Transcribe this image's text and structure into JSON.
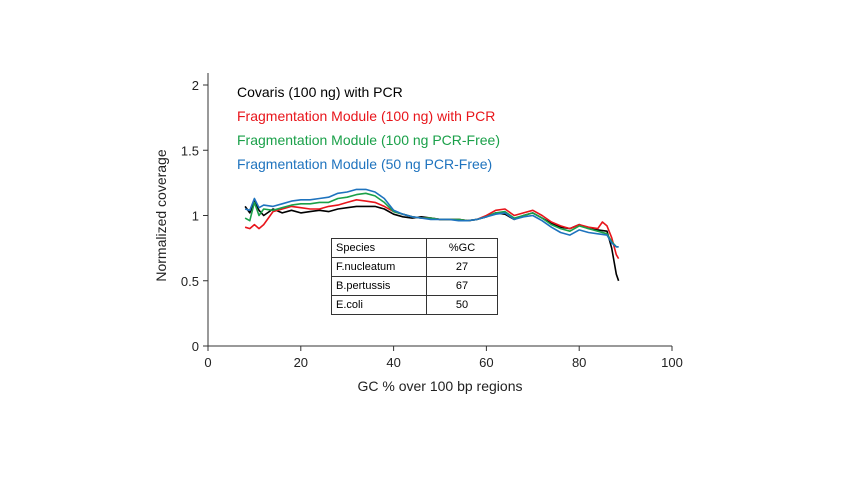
{
  "chart_data": {
    "type": "line",
    "title": "",
    "xlabel": "GC % over 100 bp regions",
    "ylabel": "Normalized coverage",
    "xlim": [
      0,
      100
    ],
    "ylim": [
      0,
      2
    ],
    "xticks": [
      0,
      20,
      40,
      60,
      80,
      100
    ],
    "yticks": [
      0,
      0.5,
      1,
      1.5,
      2
    ],
    "ytick_labels": [
      "0",
      "0.5",
      "1",
      "1.5",
      "2"
    ],
    "grid": false,
    "legend_position": "top-left",
    "series": [
      {
        "name": "Covaris (100 ng) with PCR",
        "color": "#000000",
        "points": [
          [
            8,
            1.07
          ],
          [
            9,
            1.02
          ],
          [
            10,
            1.11
          ],
          [
            11,
            1.04
          ],
          [
            12,
            1.0
          ],
          [
            14,
            1.05
          ],
          [
            16,
            1.02
          ],
          [
            18,
            1.04
          ],
          [
            20,
            1.02
          ],
          [
            22,
            1.03
          ],
          [
            24,
            1.04
          ],
          [
            26,
            1.03
          ],
          [
            28,
            1.05
          ],
          [
            30,
            1.06
          ],
          [
            32,
            1.07
          ],
          [
            34,
            1.07
          ],
          [
            36,
            1.07
          ],
          [
            38,
            1.05
          ],
          [
            40,
            1.01
          ],
          [
            42,
            0.99
          ],
          [
            44,
            0.98
          ],
          [
            46,
            0.99
          ],
          [
            48,
            0.98
          ],
          [
            50,
            0.97
          ],
          [
            52,
            0.97
          ],
          [
            54,
            0.97
          ],
          [
            56,
            0.96
          ],
          [
            58,
            0.97
          ],
          [
            60,
            0.99
          ],
          [
            62,
            1.02
          ],
          [
            64,
            1.01
          ],
          [
            66,
            0.97
          ],
          [
            68,
            1.0
          ],
          [
            70,
            1.02
          ],
          [
            72,
            0.98
          ],
          [
            74,
            0.94
          ],
          [
            76,
            0.91
          ],
          [
            78,
            0.9
          ],
          [
            80,
            0.93
          ],
          [
            82,
            0.9
          ],
          [
            84,
            0.89
          ],
          [
            86,
            0.88
          ],
          [
            87,
            0.75
          ],
          [
            88,
            0.55
          ],
          [
            88.5,
            0.5
          ]
        ]
      },
      {
        "name": "Fragmentation Module (100 ng) with PCR",
        "color": "#e8151b",
        "points": [
          [
            8,
            0.91
          ],
          [
            9,
            0.9
          ],
          [
            10,
            0.93
          ],
          [
            11,
            0.9
          ],
          [
            12,
            0.93
          ],
          [
            14,
            1.03
          ],
          [
            16,
            1.05
          ],
          [
            18,
            1.07
          ],
          [
            20,
            1.06
          ],
          [
            22,
            1.05
          ],
          [
            24,
            1.05
          ],
          [
            26,
            1.07
          ],
          [
            28,
            1.08
          ],
          [
            30,
            1.1
          ],
          [
            32,
            1.12
          ],
          [
            34,
            1.11
          ],
          [
            36,
            1.1
          ],
          [
            38,
            1.07
          ],
          [
            40,
            1.03
          ],
          [
            42,
            1.01
          ],
          [
            44,
            0.99
          ],
          [
            46,
            0.98
          ],
          [
            48,
            0.98
          ],
          [
            50,
            0.97
          ],
          [
            52,
            0.97
          ],
          [
            54,
            0.97
          ],
          [
            56,
            0.96
          ],
          [
            58,
            0.97
          ],
          [
            60,
            1.0
          ],
          [
            62,
            1.04
          ],
          [
            64,
            1.05
          ],
          [
            66,
            1.0
          ],
          [
            68,
            1.02
          ],
          [
            70,
            1.04
          ],
          [
            72,
            1.0
          ],
          [
            74,
            0.95
          ],
          [
            76,
            0.92
          ],
          [
            78,
            0.9
          ],
          [
            80,
            0.93
          ],
          [
            82,
            0.91
          ],
          [
            84,
            0.9
          ],
          [
            85,
            0.95
          ],
          [
            86,
            0.92
          ],
          [
            87,
            0.83
          ],
          [
            88,
            0.7
          ],
          [
            88.5,
            0.67
          ]
        ]
      },
      {
        "name": "Fragmentation Module (100 ng PCR-Free)",
        "color": "#1aa049",
        "points": [
          [
            8,
            0.98
          ],
          [
            9,
            0.96
          ],
          [
            10,
            1.1
          ],
          [
            11,
            1.0
          ],
          [
            12,
            1.05
          ],
          [
            14,
            1.04
          ],
          [
            16,
            1.06
          ],
          [
            18,
            1.08
          ],
          [
            20,
            1.09
          ],
          [
            22,
            1.09
          ],
          [
            24,
            1.1
          ],
          [
            26,
            1.1
          ],
          [
            28,
            1.13
          ],
          [
            30,
            1.14
          ],
          [
            32,
            1.16
          ],
          [
            34,
            1.17
          ],
          [
            36,
            1.15
          ],
          [
            38,
            1.1
          ],
          [
            40,
            1.03
          ],
          [
            42,
            1.01
          ],
          [
            44,
            0.99
          ],
          [
            46,
            0.98
          ],
          [
            48,
            0.98
          ],
          [
            50,
            0.97
          ],
          [
            52,
            0.97
          ],
          [
            54,
            0.97
          ],
          [
            56,
            0.96
          ],
          [
            58,
            0.97
          ],
          [
            60,
            0.99
          ],
          [
            62,
            1.02
          ],
          [
            64,
            1.03
          ],
          [
            66,
            0.98
          ],
          [
            68,
            1.0
          ],
          [
            70,
            1.02
          ],
          [
            72,
            0.98
          ],
          [
            74,
            0.93
          ],
          [
            76,
            0.9
          ],
          [
            78,
            0.88
          ],
          [
            80,
            0.92
          ],
          [
            82,
            0.9
          ],
          [
            84,
            0.88
          ],
          [
            86,
            0.86
          ],
          [
            87,
            0.8
          ],
          [
            88,
            0.76
          ],
          [
            88.5,
            0.76
          ]
        ]
      },
      {
        "name": "Fragmentation Module (50 ng PCR-Free)",
        "color": "#1e73be",
        "points": [
          [
            8,
            1.05
          ],
          [
            9,
            1.04
          ],
          [
            10,
            1.13
          ],
          [
            11,
            1.06
          ],
          [
            12,
            1.08
          ],
          [
            14,
            1.07
          ],
          [
            16,
            1.09
          ],
          [
            18,
            1.11
          ],
          [
            20,
            1.12
          ],
          [
            22,
            1.12
          ],
          [
            24,
            1.13
          ],
          [
            26,
            1.14
          ],
          [
            28,
            1.17
          ],
          [
            30,
            1.18
          ],
          [
            32,
            1.2
          ],
          [
            34,
            1.2
          ],
          [
            36,
            1.18
          ],
          [
            38,
            1.13
          ],
          [
            40,
            1.04
          ],
          [
            42,
            1.01
          ],
          [
            44,
            0.99
          ],
          [
            46,
            0.98
          ],
          [
            48,
            0.97
          ],
          [
            50,
            0.97
          ],
          [
            52,
            0.97
          ],
          [
            54,
            0.96
          ],
          [
            56,
            0.96
          ],
          [
            58,
            0.97
          ],
          [
            60,
            0.99
          ],
          [
            62,
            1.01
          ],
          [
            64,
            1.02
          ],
          [
            66,
            0.97
          ],
          [
            68,
            0.99
          ],
          [
            70,
            1.0
          ],
          [
            72,
            0.96
          ],
          [
            74,
            0.91
          ],
          [
            76,
            0.87
          ],
          [
            78,
            0.85
          ],
          [
            80,
            0.89
          ],
          [
            82,
            0.87
          ],
          [
            84,
            0.86
          ],
          [
            86,
            0.85
          ],
          [
            87,
            0.79
          ],
          [
            88,
            0.76
          ],
          [
            88.5,
            0.76
          ]
        ]
      }
    ],
    "annotations": [
      {
        "type": "table",
        "headers": [
          "Species",
          "%GC"
        ],
        "rows": [
          [
            "F.nucleatum",
            "27"
          ],
          [
            "B.pertussis",
            "67"
          ],
          [
            "E.coli",
            "50"
          ]
        ]
      }
    ]
  }
}
